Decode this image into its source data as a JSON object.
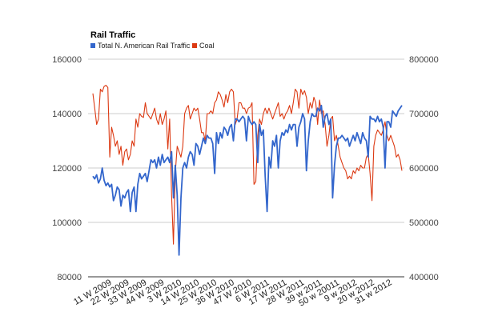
{
  "chart_data": {
    "type": "line",
    "title": "Rail Traffic",
    "legend_position": "top-left",
    "grid": true,
    "x_tick_labels": [
      "11 W 2009",
      "22 W 2009",
      "33 W 2009",
      "44 W 2009",
      "3 W 2010",
      "14 W 2010",
      "25 W 2010",
      "36 W 2010",
      "47 W 2010",
      "6 W 2011",
      "17 W 2011",
      "28 W 2011",
      "39 w 2011",
      "50 w 20011",
      "9 w 2012",
      "20 w 2012",
      "31 w 2012"
    ],
    "y_left": {
      "range": [
        80000,
        160000
      ],
      "ticks": [
        80000,
        100000,
        120000,
        140000,
        160000
      ],
      "tick_labels": [
        "80000",
        "100000",
        "120000",
        "140000",
        "160000"
      ]
    },
    "y_right": {
      "range": [
        400000,
        800000
      ],
      "ticks": [
        400000,
        500000,
        600000,
        700000,
        800000
      ],
      "tick_labels": [
        "400000",
        "500000",
        "600000",
        "700000",
        "800000"
      ]
    },
    "series": [
      {
        "name": "Total N. American Rail Traffic",
        "color": "#3366cc",
        "axis": "left",
        "values": [
          117000,
          116000,
          117500,
          114500,
          116000,
          120000,
          115500,
          113500,
          114500,
          113000,
          114000,
          108000,
          110000,
          113000,
          112000,
          106000,
          110000,
          109000,
          111000,
          112000,
          104000,
          111000,
          113000,
          104000,
          114000,
          118000,
          116000,
          117000,
          118000,
          115000,
          119000,
          123000,
          122000,
          123000,
          120000,
          124000,
          121000,
          125000,
          122000,
          123000,
          124000,
          122000,
          126000,
          109000,
          121000,
          110000,
          88000,
          109000,
          120000,
          122000,
          120000,
          124000,
          126000,
          125000,
          121000,
          129000,
          128000,
          125000,
          128000,
          131000,
          129000,
          132000,
          131000,
          131000,
          129000,
          118000,
          133000,
          129000,
          133000,
          131000,
          135000,
          134000,
          132000,
          135000,
          136000,
          130000,
          138000,
          138000,
          137000,
          138000,
          139000,
          138000,
          130000,
          139000,
          137000,
          136000,
          137000,
          136000,
          122000,
          136000,
          132000,
          134000,
          117000,
          104000,
          124000,
          120000,
          130000,
          128000,
          132000,
          120000,
          130000,
          133000,
          132000,
          134000,
          133000,
          136000,
          134000,
          136000,
          136000,
          128000,
          135000,
          137000,
          140000,
          138000,
          119000,
          130000,
          137000,
          140000,
          139000,
          139000,
          142000,
          141000,
          143000,
          135000,
          139000,
          140000,
          136000,
          138000,
          109000,
          121000,
          128000,
          131000,
          131000,
          132000,
          131000,
          130000,
          131000,
          128000,
          130000,
          132000,
          130000,
          133000,
          131000,
          129000,
          133000,
          131000,
          130000,
          124000,
          139000,
          138000,
          138000,
          137000,
          139000,
          137000,
          138000,
          135000,
          120000,
          137000,
          137000,
          135000,
          141000,
          140000,
          139000,
          141000,
          142000,
          143000
        ]
      },
      {
        "name": "Coal",
        "color": "#dc3912",
        "axis": "right",
        "values": [
          737000,
          710000,
          680000,
          690000,
          745000,
          740000,
          750000,
          752000,
          748000,
          620000,
          675000,
          660000,
          640000,
          650000,
          625000,
          640000,
          605000,
          630000,
          635000,
          615000,
          625000,
          650000,
          640000,
          690000,
          675000,
          700000,
          695000,
          693000,
          720000,
          700000,
          695000,
          690000,
          700000,
          710000,
          690000,
          680000,
          700000,
          680000,
          690000,
          705000,
          635000,
          690000,
          550000,
          460000,
          590000,
          640000,
          630000,
          620000,
          640000,
          700000,
          710000,
          715000,
          690000,
          700000,
          710000,
          705000,
          710000,
          690000,
          665000,
          665000,
          650000,
          700000,
          700000,
          705000,
          700000,
          720000,
          725000,
          740000,
          735000,
          725000,
          712000,
          735000,
          720000,
          740000,
          745000,
          740000,
          680000,
          690000,
          720000,
          720000,
          710000,
          710000,
          700000,
          710000,
          712000,
          720000,
          570000,
          575000,
          660000,
          690000,
          680000,
          700000,
          710000,
          700000,
          710000,
          700000,
          690000,
          700000,
          710000,
          720000,
          695000,
          700000,
          690000,
          700000,
          705000,
          715000,
          700000,
          720000,
          745000,
          740000,
          710000,
          745000,
          735000,
          742000,
          730000,
          700000,
          720000,
          710000,
          730000,
          720000,
          680000,
          725000,
          700000,
          705000,
          680000,
          640000,
          660000,
          690000,
          695000,
          650000,
          660000,
          640000,
          620000,
          610000,
          600000,
          595000,
          580000,
          585000,
          580000,
          595000,
          590000,
          600000,
          595000,
          605000,
          600000,
          600000,
          620000,
          625000,
          590000,
          540000,
          640000,
          660000,
          670000,
          665000,
          660000,
          670000,
          685000,
          660000,
          650000,
          660000,
          650000,
          640000,
          620000,
          625000,
          615000,
          595000
        ]
      }
    ]
  }
}
